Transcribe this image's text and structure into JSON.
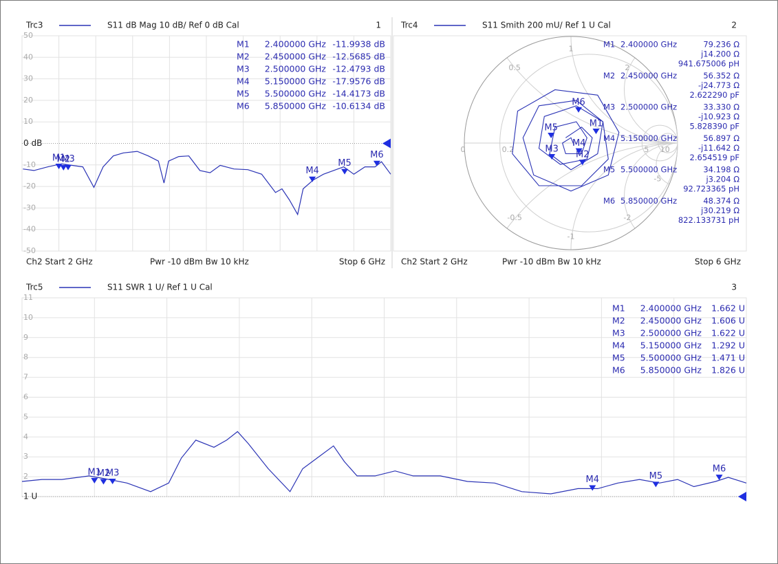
{
  "chart_data": [
    {
      "type": "line",
      "header": {
        "title": "S11  dB Mag  10 dB/ Ref 0 dB  Cal",
        "window": "1"
      },
      "footer": {
        "start": "Ch2  Start  2 GHz",
        "mid": "Pwr  -10 dBm  Bw  10 kHz",
        "stop": "Stop  6 GHz"
      },
      "x": [
        2.01,
        2.13,
        2.28,
        2.43,
        2.54,
        2.66,
        2.78,
        2.88,
        2.99,
        3.1,
        3.25,
        3.37,
        3.48,
        3.54,
        3.59,
        3.7,
        3.81,
        3.93,
        4.04,
        4.15,
        4.3,
        4.45,
        4.6,
        4.75,
        4.82,
        4.9,
        4.99,
        5.05,
        5.16,
        5.27,
        5.38,
        5.49,
        5.6,
        5.72,
        5.83,
        5.9,
        6.0
      ],
      "series": [
        {
          "name": "Trc3",
          "color": "#2a33b5",
          "values": [
            -11.9,
            -12.6,
            -10.9,
            -9.5,
            -10.2,
            -10.9,
            -20.4,
            -10.9,
            -5.8,
            -4.4,
            -3.7,
            -5.8,
            -8.2,
            -18.4,
            -8.2,
            -6.1,
            -5.8,
            -12.6,
            -13.6,
            -10.2,
            -11.9,
            -12.2,
            -14.3,
            -22.8,
            -21.1,
            -26.2,
            -33,
            -21.1,
            -17,
            -14.3,
            -12.6,
            -10.9,
            -14.3,
            -10.9,
            -10.9,
            -8.5,
            -14.3
          ]
        }
      ],
      "xlim": [
        2,
        6
      ],
      "ylim": [
        -50,
        50
      ],
      "yticks": [
        50,
        40,
        30,
        20,
        10,
        {
          "value": 0,
          "label": "0 dB"
        },
        -10,
        -20,
        -30,
        -40,
        -50
      ],
      "grid": true,
      "markers": [
        {
          "name": "M1",
          "x": 2.4,
          "x_label": "2.400000 GHz",
          "y": -11.9938,
          "y_label": "-11.9938 dB"
        },
        {
          "name": "M2",
          "x": 2.45,
          "x_label": "2.450000 GHz",
          "y": -12.5685,
          "y_label": "-12.5685 dB"
        },
        {
          "name": "M3",
          "x": 2.5,
          "x_label": "2.500000 GHz",
          "y": -12.4793,
          "y_label": "-12.4793 dB"
        },
        {
          "name": "M4",
          "x": 5.15,
          "x_label": "5.150000 GHz",
          "y": -17.9576,
          "y_label": "-17.9576 dB"
        },
        {
          "name": "M5",
          "x": 5.5,
          "x_label": "5.500000 GHz",
          "y": -14.4173,
          "y_label": "-14.4173 dB"
        },
        {
          "name": "M6",
          "x": 5.85,
          "x_label": "5.850000 GHz",
          "y": -10.6134,
          "y_label": "-10.6134 dB"
        }
      ]
    },
    {
      "type": "smith",
      "header": {
        "title": "S11  Smith  200 mU/ Ref 1 U  Cal",
        "window": "2"
      },
      "footer": {
        "start": "Ch2  Start  2 GHz",
        "mid": "Pwr  -10 dBm  Bw  10 kHz",
        "stop": "Stop  6 GHz"
      },
      "series": [
        {
          "name": "Trc4",
          "color": "#2a33b5",
          "real": [
            -0.05,
            0.1,
            0.2,
            0.15,
            -0.1,
            -0.3,
            -0.25,
            0.05,
            0.3,
            0.35,
            0.1,
            -0.3,
            -0.55,
            -0.5,
            -0.15,
            0.25,
            0.45,
            0.35,
            0,
            -0.35,
            -0.45,
            -0.3,
            0.05,
            0.3,
            0.25,
            0,
            -0.2,
            -0.15,
            0.05,
            0.15,
            0.1,
            -0.05,
            -0.08,
            0,
            0.03
          ],
          "imag": [
            0.05,
            0.15,
            0.05,
            -0.15,
            -0.2,
            -0.05,
            0.25,
            0.35,
            0.2,
            -0.15,
            -0.4,
            -0.4,
            -0.1,
            0.3,
            0.5,
            0.45,
            0.1,
            -0.3,
            -0.45,
            -0.3,
            0.05,
            0.35,
            0.4,
            0.2,
            -0.1,
            -0.25,
            -0.1,
            0.15,
            0.2,
            0.05,
            -0.1,
            -0.1,
            0,
            0.05,
            -0.02
          ]
        }
      ],
      "resistance_ticks": [
        0,
        0.2,
        5,
        10
      ],
      "reactance_ticks": [
        0.5,
        1,
        2,
        -0.5,
        -1,
        -2,
        -5
      ],
      "markers": [
        {
          "name": "M1",
          "x": 2.4,
          "x_label": "2.400000 GHz",
          "r": 79.236,
          "r_label": "79.236 Ω",
          "reactance": 14.2,
          "reactance_label": "j14.200 Ω",
          "element_label": "941.675006 pH"
        },
        {
          "name": "M2",
          "x": 2.45,
          "x_label": "2.450000 GHz",
          "r": 56.352,
          "r_label": "56.352 Ω",
          "reactance": -24.773,
          "reactance_label": "-j24.773 Ω",
          "element_label": "2.622290 pF"
        },
        {
          "name": "M3",
          "x": 2.5,
          "x_label": "2.500000 GHz",
          "r": 33.33,
          "r_label": "33.330 Ω",
          "reactance": -10.923,
          "reactance_label": "-j10.923 Ω",
          "element_label": "5.828390 pF"
        },
        {
          "name": "M4",
          "x": 5.15,
          "x_label": "5.150000 GHz",
          "r": 56.897,
          "r_label": "56.897 Ω",
          "reactance": -11.642,
          "reactance_label": "-j11.642 Ω",
          "element_label": "2.654519 pF"
        },
        {
          "name": "M5",
          "x": 5.5,
          "x_label": "5.500000 GHz",
          "r": 34.198,
          "r_label": "34.198 Ω",
          "reactance": 3.204,
          "reactance_label": "j3.204 Ω",
          "element_label": "92.723365 pH"
        },
        {
          "name": "M6",
          "x": 5.85,
          "x_label": "5.850000 GHz",
          "r": 48.374,
          "r_label": "48.374 Ω",
          "reactance": 30.219,
          "reactance_label": "j30.219 Ω",
          "element_label": "822.133731 pH"
        }
      ]
    },
    {
      "type": "line",
      "header": {
        "title": "S11  SWR  1 U/ Ref 1 U  Cal",
        "window": "3"
      },
      "x": [
        2.0,
        2.11,
        2.22,
        2.37,
        2.48,
        2.58,
        2.71,
        2.81,
        2.88,
        2.96,
        3.06,
        3.13,
        3.19,
        3.25,
        3.36,
        3.48,
        3.55,
        3.63,
        3.72,
        3.78,
        3.85,
        3.95,
        4.06,
        4.16,
        4.31,
        4.46,
        4.61,
        4.76,
        4.92,
        5.07,
        5.18,
        5.29,
        5.41,
        5.52,
        5.62,
        5.71,
        5.83,
        5.9,
        6.0
      ],
      "series": [
        {
          "name": "Trc5",
          "color": "#2a33b5",
          "values": [
            1.76,
            1.86,
            1.86,
            2.04,
            1.86,
            1.68,
            1.25,
            1.68,
            2.94,
            3.84,
            3.48,
            3.84,
            4.27,
            3.66,
            2.4,
            1.25,
            2.4,
            2.94,
            3.55,
            2.76,
            2.04,
            2.04,
            2.29,
            2.04,
            2.04,
            1.76,
            1.68,
            1.25,
            1.14,
            1.4,
            1.4,
            1.68,
            1.86,
            1.68,
            1.86,
            1.5,
            1.76,
            1.97,
            1.68
          ]
        }
      ],
      "xlim": [
        2,
        6
      ],
      "ylim": [
        1,
        11
      ],
      "yticks": [
        11,
        10,
        9,
        8,
        7,
        6,
        5,
        4,
        3,
        2,
        {
          "value": 1,
          "label": "1 U"
        }
      ],
      "grid": true,
      "markers": [
        {
          "name": "M1",
          "x": 2.4,
          "x_label": "2.400000 GHz",
          "y": 1.662,
          "y_label": "1.662 U"
        },
        {
          "name": "M2",
          "x": 2.45,
          "x_label": "2.450000 GHz",
          "y": 1.606,
          "y_label": "1.606 U"
        },
        {
          "name": "M3",
          "x": 2.5,
          "x_label": "2.500000 GHz",
          "y": 1.622,
          "y_label": "1.622 U"
        },
        {
          "name": "M4",
          "x": 5.15,
          "x_label": "5.150000 GHz",
          "y": 1.292,
          "y_label": "1.292 U"
        },
        {
          "name": "M5",
          "x": 5.5,
          "x_label": "5.500000 GHz",
          "y": 1.471,
          "y_label": "1.471 U"
        },
        {
          "name": "M6",
          "x": 5.85,
          "x_label": "5.850000 GHz",
          "y": 1.826,
          "y_label": "1.826 U"
        }
      ]
    }
  ]
}
